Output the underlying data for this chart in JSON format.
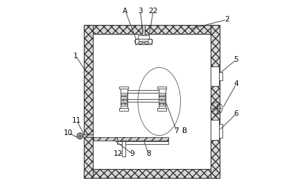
{
  "bg_color": "#ffffff",
  "label_color": "#000000",
  "wall_fc": "#e0e0e0",
  "wall_ec": "#333333",
  "ox": 0.1,
  "oy": 0.06,
  "ow": 0.78,
  "oh": 0.88,
  "wall": 0.052,
  "label_fs": 7.5,
  "lw": 0.8,
  "lw2": 0.6
}
